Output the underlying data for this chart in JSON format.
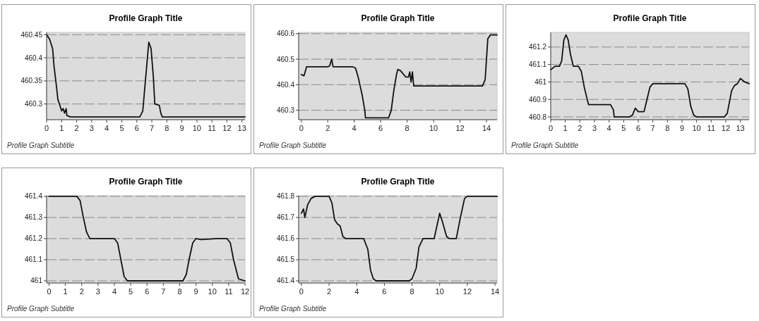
{
  "chart_data": [
    {
      "type": "line",
      "title": "Profile Graph Title",
      "subtitle": "Profile Graph Subtitle",
      "xlim": [
        0,
        13.2
      ],
      "xticks": [
        0,
        1,
        2,
        3,
        4,
        5,
        6,
        7,
        8,
        9,
        10,
        11,
        12,
        13
      ],
      "ylim": [
        460.266,
        460.455
      ],
      "yticks": [
        460.3,
        460.35,
        460.4,
        460.45
      ],
      "grid": "y",
      "line_style": "solid",
      "series": [
        {
          "color": "#111111",
          "x": [
            0,
            0.2,
            0.4,
            0.5,
            0.65,
            0.75,
            0.9,
            1.0,
            1.1,
            1.2,
            1.3,
            1.35,
            1.6,
            6.2,
            6.4,
            6.6,
            6.8,
            6.95,
            7.1,
            7.2,
            7.5,
            7.6,
            7.7,
            13.2
          ],
          "values": [
            460.45,
            460.44,
            460.42,
            460.38,
            460.34,
            460.31,
            460.295,
            460.285,
            460.29,
            460.28,
            460.29,
            460.275,
            460.272,
            460.272,
            460.285,
            460.36,
            460.434,
            460.42,
            460.36,
            460.3,
            460.297,
            460.28,
            460.272,
            460.272
          ]
        }
      ]
    },
    {
      "type": "line",
      "title": "Profile Graph Title",
      "subtitle": "Profile Graph Subtitle",
      "xlim": [
        -0.2,
        14.8
      ],
      "xticks": [
        0,
        2,
        4,
        6,
        8,
        10,
        12,
        14
      ],
      "ylim": [
        460.263,
        460.605
      ],
      "yticks": [
        460.3,
        460.4,
        460.5,
        460.6
      ],
      "grid": "y",
      "line_style": "solid",
      "series": [
        {
          "color": "#111111",
          "x": [
            0,
            0.2,
            0.4,
            2.0,
            2.15,
            2.3,
            2.4,
            3.9,
            4.1,
            4.3,
            4.6,
            4.8,
            4.85,
            6.6,
            6.8,
            7.0,
            7.2,
            7.3,
            7.5,
            7.9,
            8.1,
            8.2,
            8.3,
            8.4,
            8.5,
            13.7,
            13.9,
            14.1,
            14.3,
            14.8
          ],
          "values": [
            460.44,
            460.435,
            460.47,
            460.47,
            460.475,
            460.5,
            460.47,
            460.47,
            460.465,
            460.43,
            460.36,
            460.3,
            460.27,
            460.27,
            460.3,
            460.38,
            460.44,
            460.46,
            460.455,
            460.43,
            460.43,
            460.45,
            460.41,
            460.45,
            460.395,
            460.395,
            460.42,
            460.58,
            460.595,
            460.595
          ]
        }
      ]
    },
    {
      "type": "line",
      "title": "Profile Graph Title",
      "subtitle": "Profile Graph Subtitle",
      "xlim": [
        0,
        13.6
      ],
      "xticks": [
        0,
        1,
        2,
        3,
        4,
        5,
        6,
        7,
        8,
        9,
        10,
        11,
        12,
        13
      ],
      "ylim": [
        460.784,
        461.284
      ],
      "yticks": [
        460.8,
        460.9,
        461,
        461.1,
        461.2
      ],
      "grid": "y",
      "line_style": "solid",
      "series": [
        {
          "color": "#111111",
          "x": [
            0,
            0.3,
            0.6,
            0.75,
            0.9,
            1.05,
            1.2,
            1.35,
            1.55,
            1.9,
            2.1,
            2.3,
            2.5,
            2.6,
            4.1,
            4.3,
            4.35,
            5.4,
            5.6,
            5.8,
            6.0,
            6.4,
            6.6,
            6.8,
            7.0,
            9.2,
            9.4,
            9.6,
            9.8,
            10.0,
            11.9,
            12.1,
            12.4,
            12.6,
            12.8,
            13.0,
            13.3,
            13.6
          ],
          "values": [
            461.07,
            461.09,
            461.09,
            461.12,
            461.24,
            461.27,
            461.24,
            461.16,
            461.09,
            461.09,
            461.06,
            460.97,
            460.9,
            460.87,
            460.87,
            460.84,
            460.8,
            460.8,
            460.81,
            460.85,
            460.83,
            460.83,
            460.9,
            460.97,
            460.99,
            460.99,
            460.96,
            460.86,
            460.81,
            460.8,
            460.8,
            460.82,
            460.95,
            460.98,
            460.99,
            461.02,
            461.0,
            460.99
          ]
        }
      ]
    },
    {
      "type": "line",
      "title": "Profile Graph Title",
      "subtitle": "Profile Graph Subtitle",
      "xlim": [
        -0.15,
        12
      ],
      "xticks": [
        0,
        1,
        2,
        3,
        4,
        5,
        6,
        7,
        8,
        9,
        10,
        11,
        12
      ],
      "ylim": [
        460.99,
        461.403
      ],
      "yticks": [
        461,
        461.1,
        461.2,
        461.3,
        461.4
      ],
      "grid": "y",
      "line_style": "solid",
      "series": [
        {
          "color": "#111111",
          "x": [
            0,
            1.7,
            1.9,
            2.1,
            2.3,
            2.5,
            4.0,
            4.2,
            4.4,
            4.6,
            4.8,
            8.2,
            8.4,
            8.6,
            8.8,
            9.0,
            9.3,
            10.3,
            10.9,
            11.1,
            11.3,
            11.6,
            12.0
          ],
          "values": [
            461.4,
            461.4,
            461.38,
            461.3,
            461.23,
            461.2,
            461.2,
            461.18,
            461.1,
            461.02,
            461.0,
            461.0,
            461.03,
            461.11,
            461.18,
            461.2,
            461.195,
            461.2,
            461.2,
            461.18,
            461.1,
            461.01,
            461.0
          ]
        }
      ]
    },
    {
      "type": "line",
      "title": "Profile Graph Title",
      "subtitle": "Profile Graph Subtitle",
      "xlim": [
        -0.2,
        14.15
      ],
      "xticks": [
        0,
        2,
        4,
        6,
        8,
        10,
        12,
        14
      ],
      "ylim": [
        461.39,
        461.803
      ],
      "yticks": [
        461.4,
        461.5,
        461.6,
        461.7,
        461.8
      ],
      "grid": "y",
      "line_style": "solid",
      "series": [
        {
          "color": "#111111",
          "x": [
            0,
            0.15,
            0.25,
            0.45,
            0.7,
            1.0,
            2.0,
            2.2,
            2.4,
            2.6,
            2.8,
            3.0,
            3.2,
            4.5,
            4.8,
            5.0,
            5.2,
            5.4,
            7.8,
            8.0,
            8.3,
            8.5,
            8.8,
            9.6,
            9.8,
            10.0,
            10.2,
            10.5,
            10.7,
            11.2,
            11.5,
            11.8,
            12.0,
            14.15
          ],
          "values": [
            461.72,
            461.74,
            461.7,
            461.76,
            461.79,
            461.8,
            461.8,
            461.77,
            461.69,
            461.67,
            461.66,
            461.61,
            461.6,
            461.6,
            461.55,
            461.45,
            461.41,
            461.4,
            461.4,
            461.41,
            461.46,
            461.56,
            461.6,
            461.6,
            461.66,
            461.72,
            461.68,
            461.61,
            461.6,
            461.6,
            461.7,
            461.79,
            461.8,
            461.8
          ]
        }
      ]
    }
  ]
}
